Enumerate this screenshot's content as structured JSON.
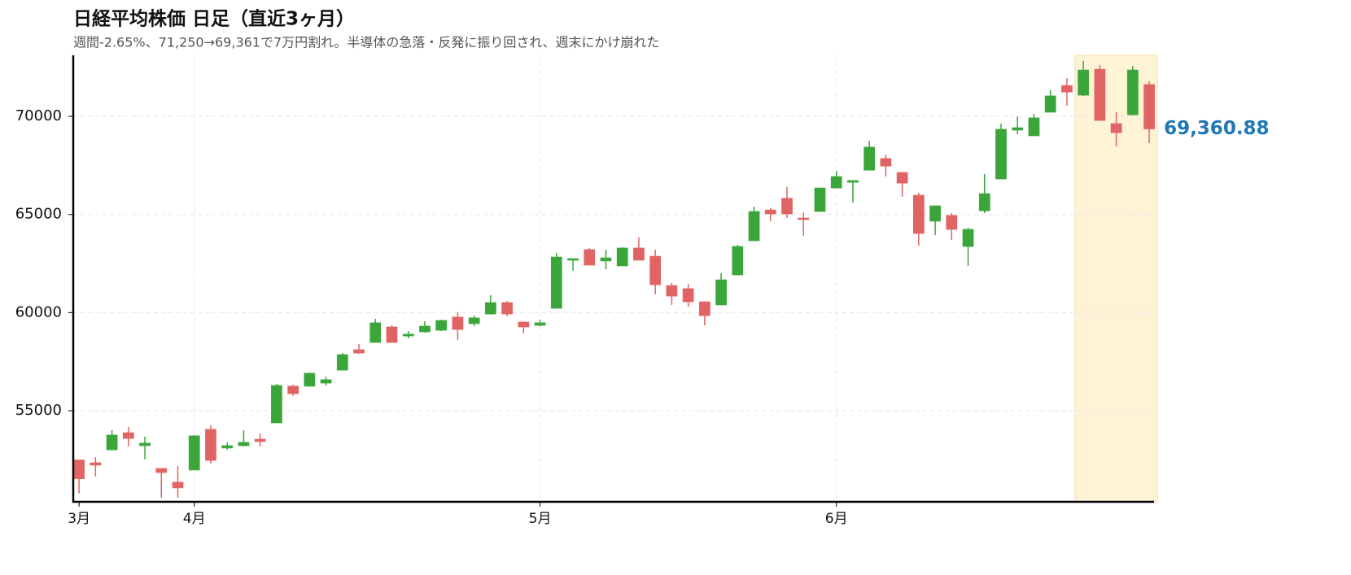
{
  "chart_data": {
    "type": "candlestick",
    "title": "日経平均株価 日足（直近3ヶ月）",
    "subtitle": "週間-2.65%、71,250→69,361で7万円割れ。半導体の急落・反発に振り回され、週末にかけ崩れた",
    "categories": [
      "3月",
      null,
      null,
      null,
      null,
      null,
      null,
      "4月",
      null,
      null,
      null,
      null,
      null,
      null,
      null,
      null,
      null,
      null,
      null,
      null,
      null,
      null,
      null,
      null,
      null,
      null,
      null,
      null,
      "5月",
      null,
      null,
      null,
      null,
      null,
      null,
      null,
      null,
      null,
      null,
      null,
      null,
      null,
      null,
      null,
      null,
      null,
      "6月",
      null,
      null,
      null,
      null,
      null,
      null,
      null,
      null,
      null,
      null,
      null,
      null,
      null,
      null,
      null,
      null,
      null,
      null,
      null
    ],
    "open": [
      52490,
      52350,
      53010,
      53880,
      53220,
      52060,
      51360,
      51980,
      54050,
      53100,
      53220,
      53550,
      54380,
      56250,
      56250,
      56410,
      57070,
      58110,
      58480,
      59270,
      58810,
      59020,
      59100,
      59770,
      59440,
      59930,
      60510,
      59520,
      59350,
      60220,
      62670,
      63210,
      62630,
      62380,
      63290,
      62870,
      61380,
      61220,
      60550,
      60390,
      61920,
      63660,
      65230,
      65820,
      64820,
      65150,
      66350,
      66640,
      67260,
      67850,
      67140,
      65980,
      64660,
      64950,
      63370,
      65190,
      66810,
      69300,
      69010,
      70210,
      71570,
      71080,
      72400,
      69630,
      70080,
      71620
    ],
    "high": [
      52490,
      52640,
      54010,
      54170,
      53680,
      52060,
      52180,
      53760,
      54260,
      53390,
      54010,
      53840,
      56370,
      56330,
      56950,
      56740,
      57940,
      58400,
      59680,
      59350,
      59060,
      59560,
      59640,
      60020,
      59850,
      60890,
      60590,
      59520,
      59640,
      63040,
      62750,
      63290,
      63210,
      63330,
      63830,
      63210,
      61510,
      61470,
      60550,
      62010,
      63460,
      65400,
      65320,
      66400,
      65110,
      66350,
      67220,
      66730,
      68760,
      68050,
      67140,
      66110,
      65440,
      65070,
      64320,
      67060,
      69630,
      70000,
      70120,
      71330,
      71950,
      72820,
      72610,
      70210,
      72570,
      71780
    ],
    "low": [
      50790,
      51650,
      53010,
      53180,
      52520,
      50570,
      50570,
      51980,
      52310,
      53010,
      53180,
      53180,
      54380,
      55750,
      56250,
      56290,
      57070,
      57900,
      58480,
      58480,
      58690,
      58980,
      59060,
      58610,
      59310,
      59890,
      59810,
      58940,
      59310,
      60220,
      62130,
      62420,
      62210,
      62380,
      62670,
      60930,
      60390,
      60300,
      59350,
      60390,
      61920,
      63660,
      64660,
      64820,
      63910,
      65150,
      66350,
      65610,
      67260,
      66930,
      65900,
      63410,
      63950,
      63700,
      62380,
      65070,
      66810,
      69090,
      69010,
      70210,
      70540,
      71040,
      69790,
      68470,
      70040,
      68630
    ],
    "close": {
      "values": [
        51540,
        52230,
        53760,
        53590,
        53350,
        51850,
        51070,
        53720,
        52470,
        53220,
        53390,
        53430,
        56290,
        55870,
        56910,
        56580,
        57860,
        57940,
        59480,
        58480,
        58900,
        59310,
        59600,
        59140,
        59730,
        60510,
        59930,
        59270,
        59480,
        62830,
        62750,
        62420,
        62790,
        63290,
        62670,
        61420,
        60840,
        60550,
        59850,
        61670,
        63370,
        65150,
        65030,
        65030,
        64740,
        66350,
        66930,
        66730,
        68430,
        67470,
        66600,
        64030,
        65440,
        64240,
        64240,
        66060,
        69340,
        69420,
        69920,
        71040,
        71240,
        72360,
        69790,
        69170,
        72360,
        69360.88
      ],
      "value_labels": [
        null,
        null,
        null,
        null,
        null,
        null,
        null,
        null,
        null,
        null,
        null,
        null,
        null,
        null,
        null,
        null,
        null,
        null,
        null,
        null,
        null,
        null,
        null,
        null,
        null,
        null,
        null,
        null,
        null,
        null,
        null,
        null,
        null,
        null,
        null,
        null,
        null,
        null,
        null,
        null,
        null,
        null,
        null,
        null,
        null,
        null,
        null,
        null,
        null,
        null,
        null,
        null,
        null,
        null,
        null,
        null,
        null,
        null,
        null,
        null,
        null,
        null,
        null,
        null,
        null,
        "69,360.88"
      ]
    },
    "up_color": "#3aa63a",
    "down_color": "#e06464",
    "label_color": "#1f77b4",
    "highlight_range": [
      61,
      65
    ],
    "highlight_color": "#fff3d6",
    "ylim": [
      50360,
      73110
    ],
    "yticks": [
      55000,
      60000,
      65000,
      70000
    ],
    "grid": true
  }
}
